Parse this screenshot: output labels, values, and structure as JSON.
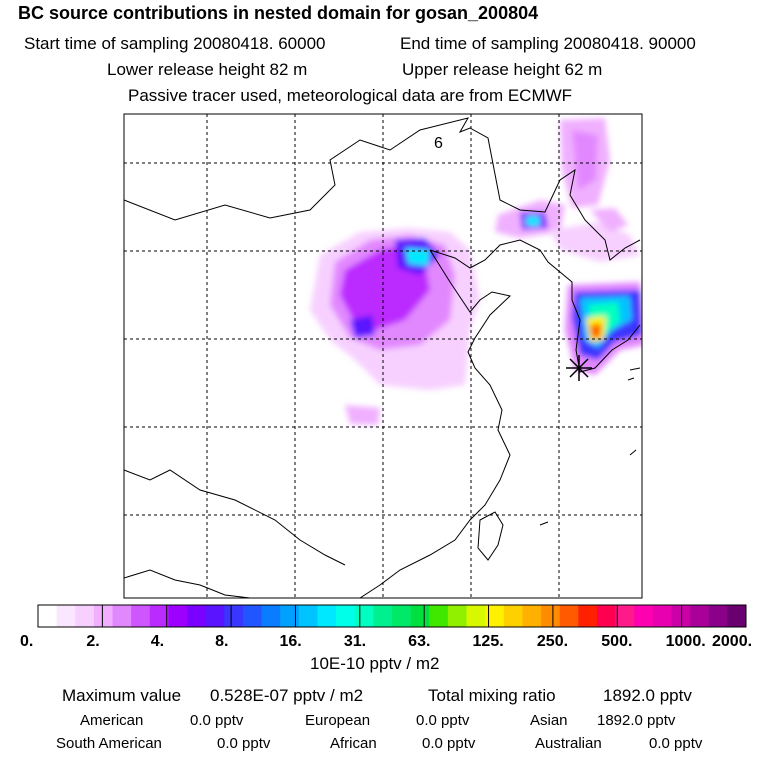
{
  "header": {
    "title": "BC  source contributions in nested domain for gosan_200804",
    "start_label": "Start time of sampling 20080418. 60000",
    "end_label": "End time of sampling 20080418. 90000",
    "lower_label": "Lower release height   82 m",
    "upper_label": "Upper release height   62 m",
    "tracer_label": "Passive tracer used, meteorological data are from ECMWF"
  },
  "chart_data": {
    "type": "heatmap",
    "map_label": "6",
    "colorbar": {
      "ticks": [
        "0.",
        "2.",
        "4.",
        "8.",
        "16.",
        "31.",
        "63.",
        "125.",
        "250.",
        "500.",
        "1000.",
        "2000."
      ],
      "colors": [
        "#ffffff",
        "#fbe6ff",
        "#f7d0ff",
        "#f0b0ff",
        "#e288ff",
        "#cf55ff",
        "#bb2bff",
        "#9d00ff",
        "#7a00ff",
        "#5a14ff",
        "#3a36ff",
        "#2055ff",
        "#0a7cff",
        "#00a0ff",
        "#00c4ff",
        "#00e8ff",
        "#00ffe8",
        "#00ffc0",
        "#00f090",
        "#00e868",
        "#00e040",
        "#40e800",
        "#90f000",
        "#d8f800",
        "#fff000",
        "#ffd000",
        "#ffb000",
        "#ff8c00",
        "#ff5a00",
        "#ff2000",
        "#ff0050",
        "#ff1a8c",
        "#ff00b0",
        "#e800b0",
        "#cc00a8",
        "#a80098",
        "#8a0088",
        "#6a0070"
      ],
      "units": "10E-10 pptv / m2"
    },
    "receptor": "gosan"
  },
  "summary": {
    "max_label": "Maximum value",
    "max_value": "0.528E-07 pptv / m2",
    "total_label": "Total mixing ratio",
    "total_value": "1892.0 pptv",
    "regions": [
      {
        "name": "American",
        "value": "0.0 pptv"
      },
      {
        "name": "European",
        "value": "0.0 pptv"
      },
      {
        "name": "Asian",
        "value": "1892.0 pptv"
      },
      {
        "name": "South American",
        "value": "0.0 pptv"
      },
      {
        "name": "African",
        "value": "0.0 pptv"
      },
      {
        "name": "Australian",
        "value": "0.0 pptv"
      }
    ]
  }
}
